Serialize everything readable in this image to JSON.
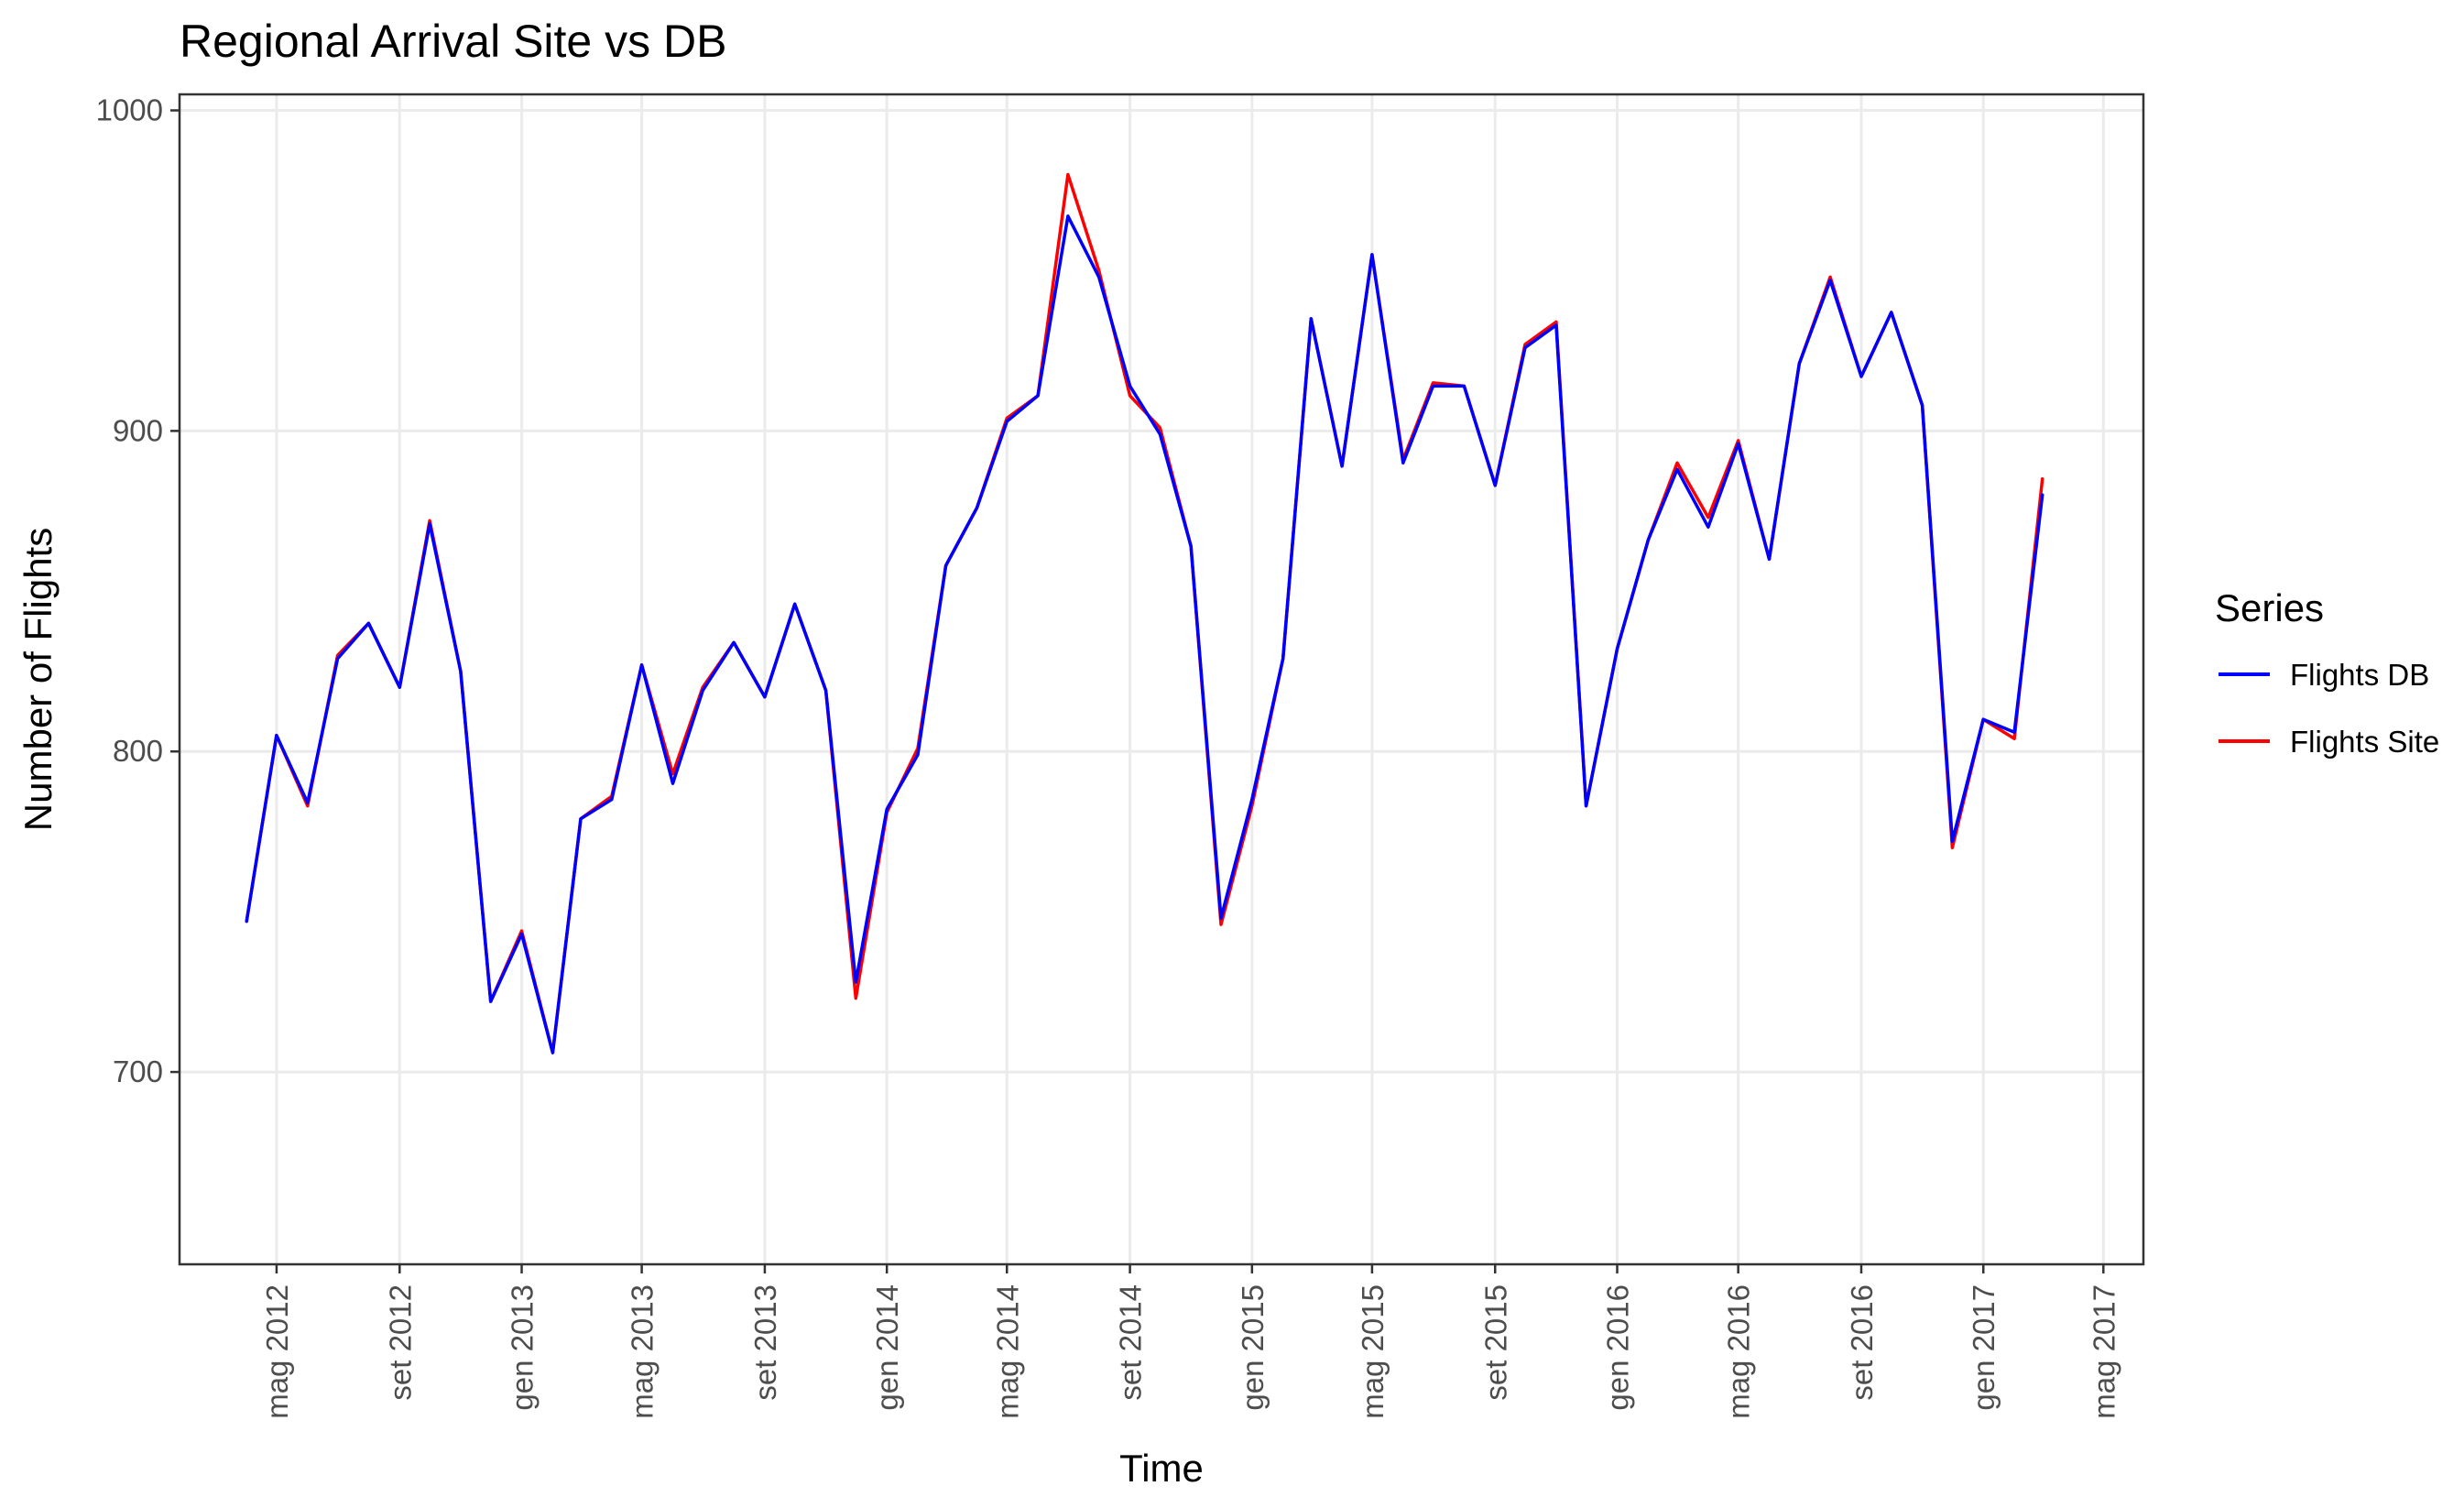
{
  "chart_data": {
    "type": "line",
    "title": "Regional Arrival Site vs DB",
    "xlabel": "Time",
    "ylabel": "Number of Flights",
    "legend_title": "Series",
    "legend_position": "right",
    "grid": true,
    "ylim": [
      640,
      1005
    ],
    "y_ticks": [
      700,
      800,
      900,
      1000
    ],
    "x_ticks": [
      {
        "date": "2012-05-01",
        "label": "mag 2012"
      },
      {
        "date": "2012-09-01",
        "label": "set 2012"
      },
      {
        "date": "2013-01-01",
        "label": "gen 2013"
      },
      {
        "date": "2013-05-01",
        "label": "mag 2013"
      },
      {
        "date": "2013-09-01",
        "label": "set 2013"
      },
      {
        "date": "2014-01-01",
        "label": "gen 2014"
      },
      {
        "date": "2014-05-01",
        "label": "mag 2014"
      },
      {
        "date": "2014-09-01",
        "label": "set 2014"
      },
      {
        "date": "2015-01-01",
        "label": "gen 2015"
      },
      {
        "date": "2015-05-01",
        "label": "mag 2015"
      },
      {
        "date": "2015-09-01",
        "label": "set 2015"
      },
      {
        "date": "2016-01-01",
        "label": "gen 2016"
      },
      {
        "date": "2016-05-01",
        "label": "mag 2016"
      },
      {
        "date": "2016-09-01",
        "label": "set 2016"
      },
      {
        "date": "2017-01-01",
        "label": "gen 2017"
      },
      {
        "date": "2017-05-01",
        "label": "mag 2017"
      }
    ],
    "x": [
      "2012-04-01",
      "2012-05-01",
      "2012-06-01",
      "2012-07-01",
      "2012-08-01",
      "2012-09-01",
      "2012-10-01",
      "2012-11-01",
      "2012-12-01",
      "2013-01-01",
      "2013-02-01",
      "2013-03-01",
      "2013-04-01",
      "2013-05-01",
      "2013-06-01",
      "2013-07-01",
      "2013-08-01",
      "2013-09-01",
      "2013-10-01",
      "2013-11-01",
      "2013-12-01",
      "2014-01-01",
      "2014-02-01",
      "2014-03-01",
      "2014-04-01",
      "2014-05-01",
      "2014-06-01",
      "2014-07-01",
      "2014-08-01",
      "2014-09-01",
      "2014-10-01",
      "2014-11-01",
      "2014-12-01",
      "2015-01-01",
      "2015-02-01",
      "2015-03-01",
      "2015-04-01",
      "2015-05-01",
      "2015-06-01",
      "2015-07-01",
      "2015-08-01",
      "2015-09-01",
      "2015-10-01",
      "2015-11-01",
      "2015-12-01",
      "2016-01-01",
      "2016-02-01",
      "2016-03-01",
      "2016-04-01",
      "2016-05-01",
      "2016-06-01",
      "2016-07-01",
      "2016-08-01",
      "2016-09-01",
      "2016-10-01",
      "2016-11-01",
      "2016-12-01",
      "2017-01-01",
      "2017-02-01",
      "2017-03-01"
    ],
    "series": [
      {
        "name": "Flights Site",
        "color": "#ff0000",
        "values": [
          747,
          805,
          783,
          830,
          840,
          820,
          872,
          825,
          722,
          744,
          706,
          779,
          786,
          827,
          793,
          820,
          834,
          817,
          846,
          819,
          723,
          781,
          801,
          858,
          876,
          904,
          911,
          980,
          950,
          911,
          901,
          864,
          746,
          783,
          829,
          935,
          889,
          955,
          891,
          915,
          914,
          883,
          927,
          934,
          783,
          832,
          866,
          890,
          873,
          897,
          860,
          921,
          948,
          917,
          937,
          908,
          770,
          810,
          804,
          885
        ]
      },
      {
        "name": "Flights DB",
        "color": "#0000ff",
        "values": [
          747,
          805,
          784,
          829,
          840,
          820,
          871,
          825,
          722,
          743,
          706,
          779,
          785,
          827,
          790,
          819,
          834,
          817,
          846,
          819,
          728,
          782,
          799,
          858,
          876,
          903,
          911,
          967,
          948,
          914,
          899,
          864,
          748,
          785,
          829,
          935,
          889,
          955,
          890,
          914,
          914,
          883,
          926,
          933,
          783,
          832,
          866,
          888,
          870,
          896,
          860,
          921,
          947,
          917,
          937,
          908,
          772,
          810,
          806,
          880
        ]
      }
    ]
  }
}
